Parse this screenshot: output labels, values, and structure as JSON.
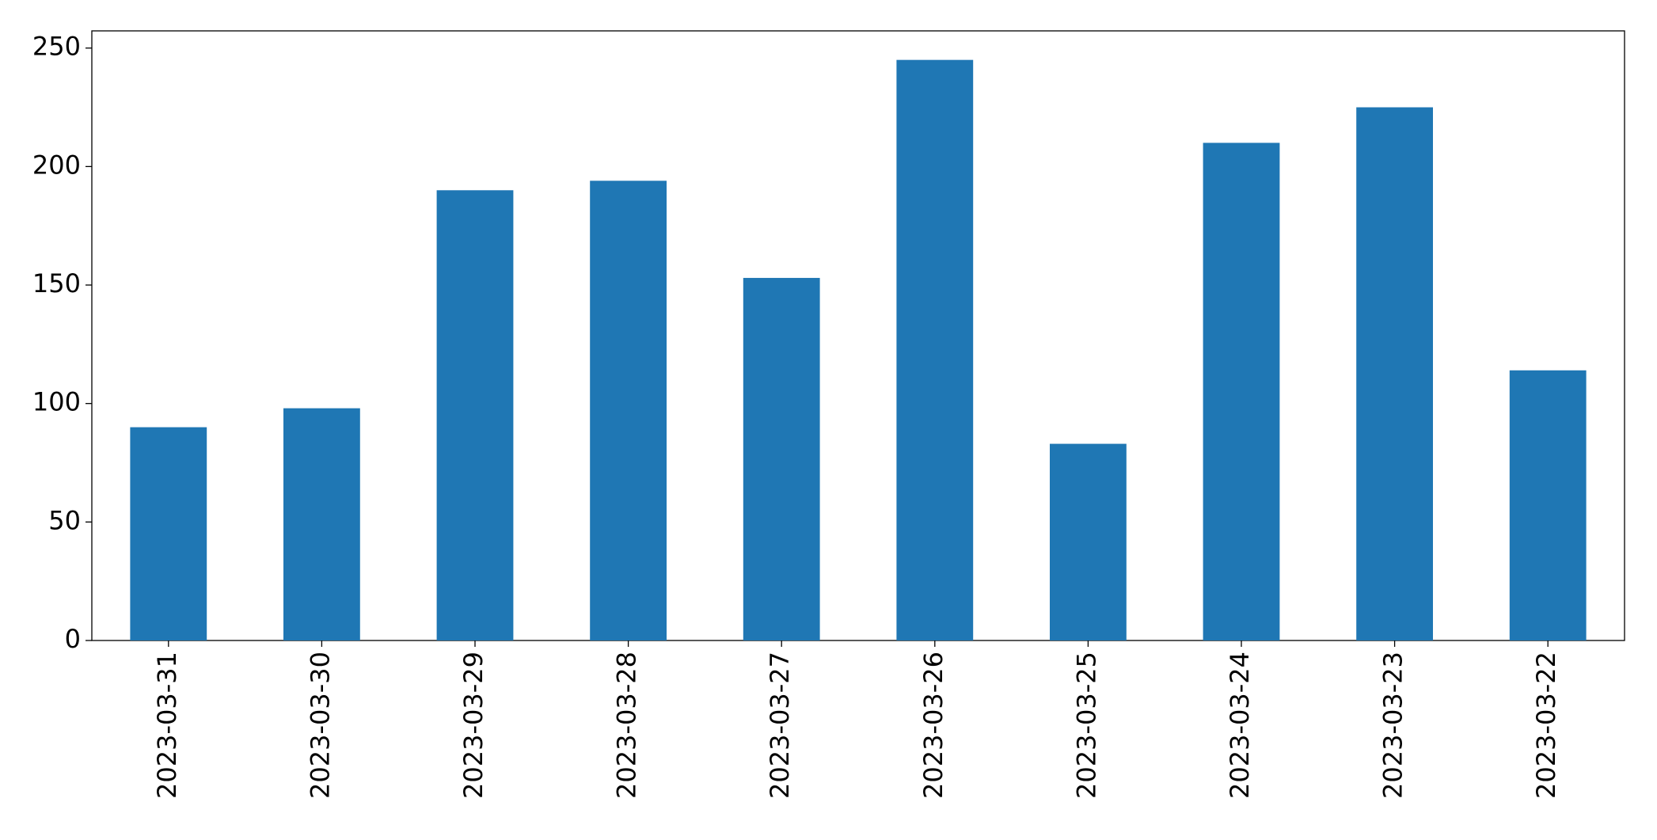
{
  "chart_data": {
    "type": "bar",
    "categories": [
      "2023-03-31",
      "2023-03-30",
      "2023-03-29",
      "2023-03-28",
      "2023-03-27",
      "2023-03-26",
      "2023-03-25",
      "2023-03-24",
      "2023-03-23",
      "2023-03-22"
    ],
    "values": [
      90,
      98,
      190,
      194,
      153,
      245,
      83,
      210,
      225,
      114
    ],
    "color": "#1f77b4",
    "ylim": [
      0,
      257.25
    ],
    "yticks": [
      0,
      50,
      100,
      150,
      200,
      250
    ],
    "grid": false
  }
}
